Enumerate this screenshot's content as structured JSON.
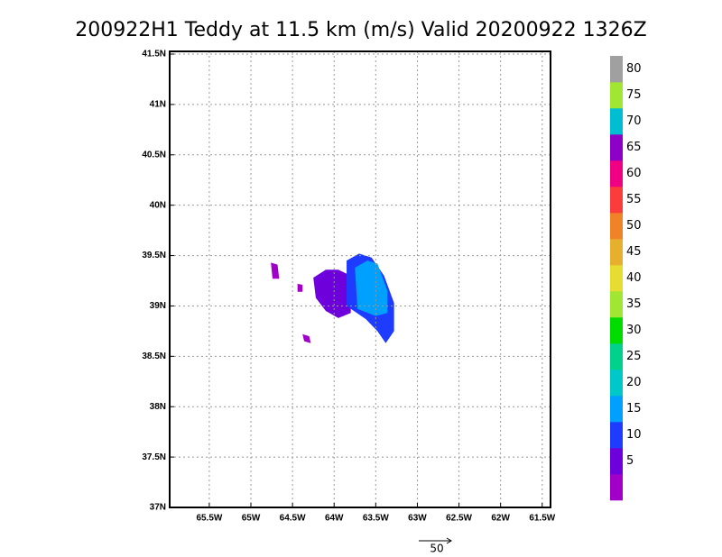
{
  "chart_data": {
    "type": "map",
    "title": "200922H1 Teddy at 11.5 km (m/s) Valid 20200922 1326Z",
    "xlim": [
      -65.976,
      -61.4
    ],
    "ylim": [
      37.0,
      41.527
    ],
    "xticks": [
      {
        "value": -65.5,
        "label": "65.5W"
      },
      {
        "value": -65,
        "label": "65W"
      },
      {
        "value": -64.5,
        "label": "64.5W"
      },
      {
        "value": -64,
        "label": "64W"
      },
      {
        "value": -63.5,
        "label": "63.5W"
      },
      {
        "value": -63,
        "label": "63W"
      },
      {
        "value": -62.5,
        "label": "62.5W"
      },
      {
        "value": -62,
        "label": "62W"
      },
      {
        "value": -61.5,
        "label": "61.5W"
      }
    ],
    "yticks": [
      {
        "value": 37,
        "label": "37N"
      },
      {
        "value": 37.5,
        "label": "37.5N"
      },
      {
        "value": 38,
        "label": "38N"
      },
      {
        "value": 38.5,
        "label": "38.5N"
      },
      {
        "value": 39,
        "label": "39N"
      },
      {
        "value": 39.5,
        "label": "39.5N"
      },
      {
        "value": 40,
        "label": "40N"
      },
      {
        "value": 40.5,
        "label": "40.5N"
      },
      {
        "value": 41,
        "label": "41N"
      },
      {
        "value": 41.5,
        "label": "41.5N"
      }
    ],
    "grid": true,
    "regions": [
      {
        "value": 3,
        "lon": [
          -64.76,
          -64.68,
          -64.66,
          -64.74
        ],
        "lat": [
          39.43,
          39.41,
          39.27,
          39.27
        ]
      },
      {
        "value": 3,
        "lon": [
          -64.44,
          -64.38,
          -64.38,
          -64.44
        ],
        "lat": [
          39.22,
          39.21,
          39.14,
          39.14
        ]
      },
      {
        "value": 3,
        "lon": [
          -64.38,
          -64.3,
          -64.28,
          -64.36
        ],
        "lat": [
          38.72,
          38.7,
          38.63,
          38.65
        ]
      },
      {
        "value": 8,
        "lon": [
          -64.25,
          -64.1,
          -63.95,
          -63.8,
          -63.8,
          -63.95,
          -64.1,
          -64.22
        ],
        "lat": [
          39.28,
          39.36,
          39.36,
          39.3,
          38.93,
          38.88,
          38.95,
          39.08
        ]
      },
      {
        "value": 12,
        "lon": [
          -63.85,
          -63.7,
          -63.55,
          -63.4,
          -63.28,
          -63.28,
          -63.38,
          -63.48,
          -63.62,
          -63.85
        ],
        "lat": [
          39.45,
          39.52,
          39.48,
          39.3,
          39.03,
          38.75,
          38.63,
          38.75,
          38.87,
          39.0
        ]
      },
      {
        "value": 17,
        "lon": [
          -63.75,
          -63.6,
          -63.48,
          -63.36,
          -63.36,
          -63.5,
          -63.72
        ],
        "lat": [
          39.38,
          39.45,
          39.42,
          39.15,
          38.93,
          38.9,
          38.97
        ]
      }
    ],
    "colorbar": {
      "levels": [
        5,
        10,
        15,
        20,
        25,
        30,
        35,
        40,
        45,
        50,
        55,
        60,
        65,
        70,
        75,
        80
      ],
      "colors": [
        "#a000c8",
        "#6e00dc",
        "#1e3cff",
        "#00a0ff",
        "#00c8c8",
        "#00d28c",
        "#00dc00",
        "#a0e632",
        "#e6dc32",
        "#e6af2d",
        "#f08228",
        "#fa3c3c",
        "#f00082",
        "#8c00c8",
        "#00bed2",
        "#a0e632",
        "#a0a0a0"
      ]
    },
    "vector_key": {
      "value": 50
    }
  }
}
